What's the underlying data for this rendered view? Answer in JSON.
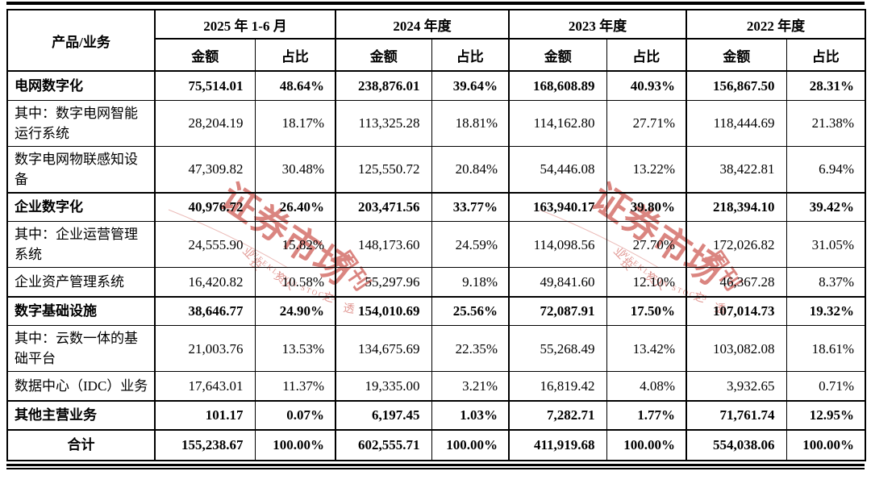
{
  "table": {
    "corner_header": "产品/业务",
    "period_groups": [
      {
        "label": "2025 年 1-6 月"
      },
      {
        "label": "2024 年度"
      },
      {
        "label": "2023 年度"
      },
      {
        "label": "2022 年度"
      }
    ],
    "sub_headers": {
      "amount": "金额",
      "ratio": "占比"
    },
    "rows": [
      {
        "label": "电网数字化",
        "bold": true,
        "section": true,
        "values": [
          "75,514.01",
          "48.64%",
          "238,876.01",
          "39.64%",
          "168,608.89",
          "40.93%",
          "156,867.50",
          "28.31%"
        ]
      },
      {
        "label": "其中：数字电网智能运行系统",
        "bold": false,
        "section": false,
        "values": [
          "28,204.19",
          "18.17%",
          "113,325.28",
          "18.81%",
          "114,162.80",
          "27.71%",
          "118,444.69",
          "21.38%"
        ]
      },
      {
        "label": "数字电网物联感知设备",
        "bold": false,
        "section": false,
        "values": [
          "47,309.82",
          "30.48%",
          "125,550.72",
          "20.84%",
          "54,446.08",
          "13.22%",
          "38,422.81",
          "6.94%"
        ]
      },
      {
        "label": "企业数字化",
        "bold": true,
        "section": true,
        "values": [
          "40,976.72",
          "26.40%",
          "203,471.56",
          "33.77%",
          "163,940.17",
          "39.80%",
          "218,394.10",
          "39.42%"
        ]
      },
      {
        "label": "其中：企业运营管理系统",
        "bold": false,
        "section": false,
        "values": [
          "24,555.90",
          "15.82%",
          "148,173.60",
          "24.59%",
          "114,098.56",
          "27.70%",
          "172,026.82",
          "31.05%"
        ]
      },
      {
        "label": "企业资产管理系统",
        "bold": false,
        "section": false,
        "values": [
          "16,420.82",
          "10.58%",
          "55,297.96",
          "9.18%",
          "49,841.60",
          "12.10%",
          "46,367.28",
          "8.37%"
        ]
      },
      {
        "label": "数字基础设施",
        "bold": true,
        "section": true,
        "values": [
          "38,646.77",
          "24.90%",
          "154,010.69",
          "25.56%",
          "72,087.91",
          "17.50%",
          "107,014.73",
          "19.32%"
        ]
      },
      {
        "label": "其中：云数一体的基础平台",
        "bold": false,
        "section": false,
        "values": [
          "21,003.76",
          "13.53%",
          "134,675.69",
          "22.35%",
          "55,268.49",
          "13.42%",
          "103,082.08",
          "18.61%"
        ]
      },
      {
        "label": "数据中心（IDC）业务",
        "bold": false,
        "section": false,
        "values": [
          "17,643.01",
          "11.37%",
          "19,335.00",
          "3.21%",
          "16,819.42",
          "4.08%",
          "3,932.65",
          "0.71%"
        ]
      },
      {
        "label": "其他主营业务",
        "bold": true,
        "section": true,
        "values": [
          "101.17",
          "0.07%",
          "6,197.45",
          "1.03%",
          "7,282.71",
          "1.77%",
          "71,761.74",
          "12.95%"
        ]
      },
      {
        "label": "合计",
        "bold": true,
        "section": true,
        "total": true,
        "center": true,
        "values": [
          "155,238.67",
          "100.00%",
          "602,555.71",
          "100.00%",
          "411,919.68",
          "100.00%",
          "554,038.06",
          "100.00%"
        ]
      }
    ]
  },
  "watermark": {
    "main_text": "证券市场",
    "suffix_text": "周刊",
    "arc_text": "WEEKLY ON STOCKS",
    "ring_chars": [
      "业",
      "投",
      "资",
      "人",
      "之",
      "透"
    ],
    "color": "#c43a31"
  },
  "colors": {
    "background": "#ffffff",
    "grid": "#000000",
    "text": "#000000"
  }
}
